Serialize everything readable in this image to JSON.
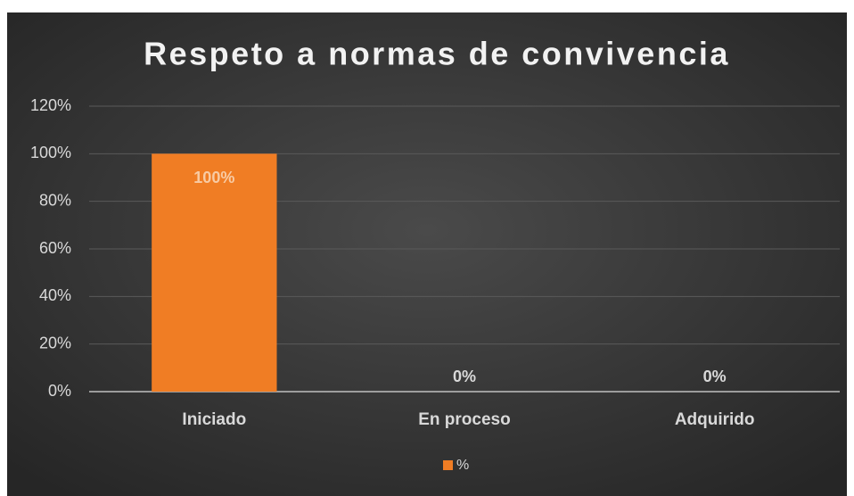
{
  "chart_data": {
    "type": "bar",
    "title": "Respeto a normas de convivencia",
    "categories": [
      "Iniciado",
      "En proceso",
      "Adquirido"
    ],
    "series": [
      {
        "name": "%",
        "color": "#f07d24",
        "values": [
          100,
          0,
          0
        ],
        "value_labels": [
          "100%",
          "0%",
          "0%"
        ]
      }
    ],
    "ylim": [
      0,
      120
    ],
    "yticks": [
      {
        "value": 0,
        "label": "0%"
      },
      {
        "value": 20,
        "label": "20%"
      },
      {
        "value": 40,
        "label": "40%"
      },
      {
        "value": 60,
        "label": "60%"
      },
      {
        "value": 80,
        "label": "80%"
      },
      {
        "value": 100,
        "label": "100%"
      },
      {
        "value": 120,
        "label": "120%"
      }
    ],
    "grid": true,
    "legend": "bottom"
  }
}
